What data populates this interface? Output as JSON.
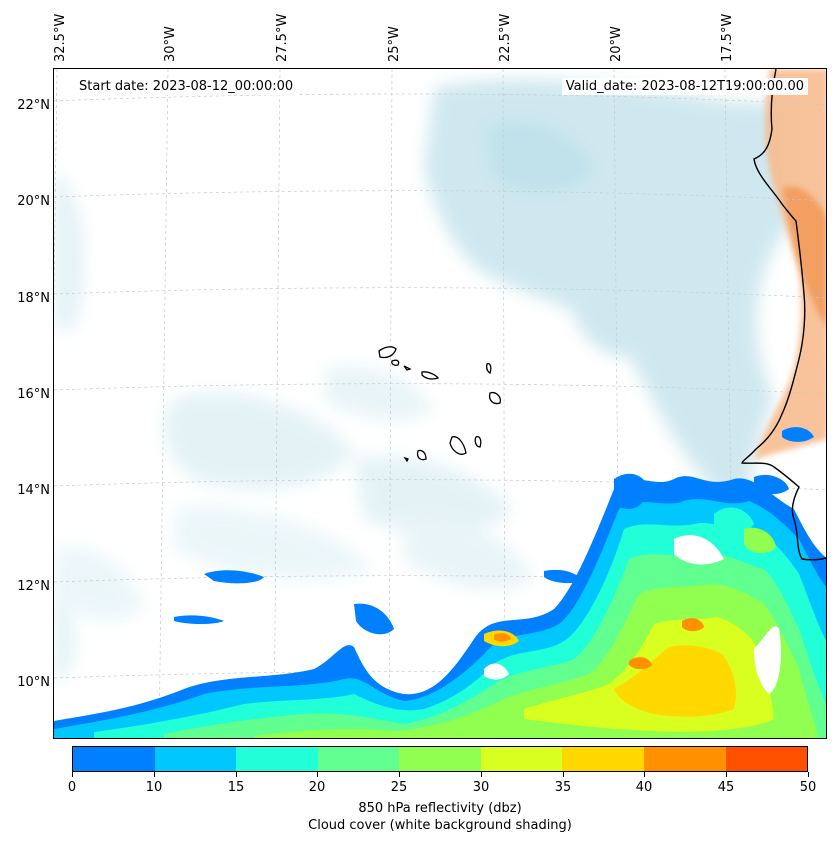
{
  "map": {
    "start_date": "Start date: 2023-08-12_00:00:00",
    "valid_date": "Valid_date: 2023-08-12T19:00:00.00",
    "lon_labels": [
      "32.5°W",
      "30°W",
      "27.5°W",
      "25°W",
      "22.5°W",
      "20°W",
      "17.5°W"
    ],
    "lat_labels": [
      "22°N",
      "20°N",
      "18°N",
      "16°N",
      "14°N",
      "12°N",
      "10°N"
    ]
  },
  "colorbar": {
    "ticks": [
      "0",
      "10",
      "15",
      "20",
      "25",
      "30",
      "35",
      "40",
      "45",
      "50"
    ],
    "colors": [
      "#0080ff",
      "#00c8ff",
      "#20ffd8",
      "#60ff90",
      "#90ff50",
      "#d8ff20",
      "#ffd800",
      "#ff9000",
      "#ff5000"
    ],
    "label_line1": "850 hPa reflectivity (dbz)",
    "label_line2": "Cloud cover (white background shading)"
  }
}
